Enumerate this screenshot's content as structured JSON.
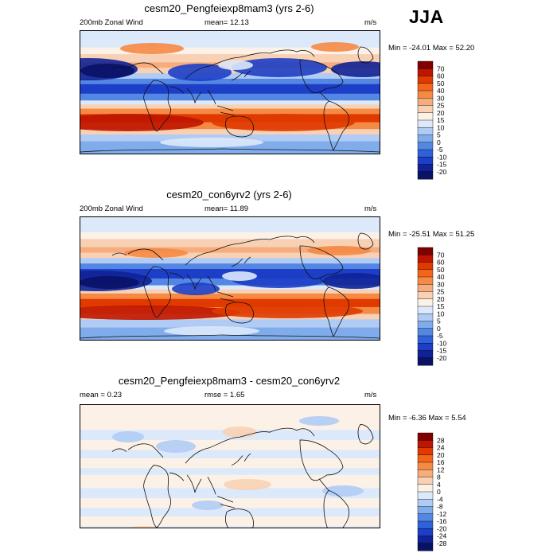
{
  "season": "JJA",
  "panels": [
    {
      "title": "cesm20_Pengfeiexp8mam3 (yrs 2-6)",
      "left_label": "200mb Zonal Wind",
      "mid_label": "mean=  12.13",
      "units": "m/s",
      "minmax": "Min = -24.01 Max =  52.20",
      "legend_colors": [
        "#800000",
        "#bf1500",
        "#e03a00",
        "#f2651b",
        "#f58a45",
        "#f6ac7d",
        "#f8d1b5",
        "#fbf1e6",
        "#dbe9fb",
        "#b0ccf5",
        "#80acec",
        "#5487e3",
        "#2f62d9",
        "#1d3ec6",
        "#102296",
        "#0a1266"
      ],
      "legend_labels": [
        "70",
        "60",
        "50",
        "40",
        "30",
        "25",
        "20",
        "15",
        "10",
        "5",
        "0",
        "-5",
        "-10",
        "-15",
        "-20"
      ],
      "map_bands": [
        {
          "lat": 90,
          "color": "#dbe9fb"
        },
        {
          "lat": 66,
          "color": "#fbf1e6"
        },
        {
          "lat": 56,
          "color": "#f8d1b5"
        },
        {
          "lat": 44,
          "color": "#f6ac7d"
        },
        {
          "lat": 36,
          "color": "#f8d1b5"
        },
        {
          "lat": 28,
          "color": "#b0ccf5"
        },
        {
          "lat": 20,
          "color": "#5487e3"
        },
        {
          "lat": 12,
          "color": "#1d3ec6"
        },
        {
          "lat": -2,
          "color": "#5487e3"
        },
        {
          "lat": -12,
          "color": "#dbe9fb"
        },
        {
          "lat": -18,
          "color": "#f8d1b5"
        },
        {
          "lat": -24,
          "color": "#f58a45"
        },
        {
          "lat": -32,
          "color": "#e03a00"
        },
        {
          "lat": -44,
          "color": "#f58a45"
        },
        {
          "lat": -54,
          "color": "#f8d1b5"
        },
        {
          "lat": -62,
          "color": "#b0ccf5"
        },
        {
          "lat": -72,
          "color": "#80acec"
        }
      ]
    },
    {
      "title": "cesm20_con6yrv2 (yrs 2-6)",
      "left_label": "200mb Zonal Wind",
      "mid_label": "mean=  11.89",
      "units": "m/s",
      "minmax": "Min = -25.51 Max =  51.25",
      "legend_colors": [
        "#800000",
        "#bf1500",
        "#e03a00",
        "#f2651b",
        "#f58a45",
        "#f6ac7d",
        "#f8d1b5",
        "#fbf1e6",
        "#dbe9fb",
        "#b0ccf5",
        "#80acec",
        "#5487e3",
        "#2f62d9",
        "#1d3ec6",
        "#102296",
        "#0a1266"
      ],
      "legend_labels": [
        "70",
        "60",
        "50",
        "40",
        "30",
        "25",
        "20",
        "15",
        "10",
        "5",
        "0",
        "-5",
        "-10",
        "-15",
        "-20"
      ],
      "map_bands": [
        {
          "lat": 90,
          "color": "#dbe9fb"
        },
        {
          "lat": 68,
          "color": "#fbf1e6"
        },
        {
          "lat": 58,
          "color": "#f8d1b5"
        },
        {
          "lat": 46,
          "color": "#f6ac7d"
        },
        {
          "lat": 38,
          "color": "#f8d1b5"
        },
        {
          "lat": 30,
          "color": "#b0ccf5"
        },
        {
          "lat": 22,
          "color": "#5487e3"
        },
        {
          "lat": 14,
          "color": "#1d3ec6"
        },
        {
          "lat": 0,
          "color": "#5487e3"
        },
        {
          "lat": -10,
          "color": "#dbe9fb"
        },
        {
          "lat": -16,
          "color": "#f8d1b5"
        },
        {
          "lat": -22,
          "color": "#f58a45"
        },
        {
          "lat": -30,
          "color": "#e03a00"
        },
        {
          "lat": -42,
          "color": "#f58a45"
        },
        {
          "lat": -52,
          "color": "#f8d1b5"
        },
        {
          "lat": -60,
          "color": "#b0ccf5"
        },
        {
          "lat": -72,
          "color": "#80acec"
        }
      ]
    },
    {
      "title": "cesm20_Pengfeiexp8mam3 - cesm20_con6yrv2",
      "left_label": "mean =   0.23",
      "mid_label": "rmse =   1.65",
      "units": "m/s",
      "minmax": "Min = -6.36 Max =   5.54",
      "legend_colors": [
        "#800000",
        "#bf1500",
        "#e03a00",
        "#f2651b",
        "#f58a45",
        "#f6ac7d",
        "#f8d1b5",
        "#fbf1e6",
        "#dbe9fb",
        "#b0ccf5",
        "#80acec",
        "#5487e3",
        "#2f62d9",
        "#1d3ec6",
        "#102296",
        "#0a1266"
      ],
      "legend_labels": [
        "28",
        "24",
        "20",
        "16",
        "12",
        "8",
        "4",
        "0",
        "-4",
        "-8",
        "-12",
        "-16",
        "-20",
        "-24",
        "-28"
      ],
      "map_bands": [
        {
          "lat": 90,
          "color": "#fbf1e6"
        },
        {
          "lat": 60,
          "color": "#dbe9fb"
        },
        {
          "lat": 48,
          "color": "#fbf1e6"
        },
        {
          "lat": 36,
          "color": "#dbe9fb"
        },
        {
          "lat": 26,
          "color": "#fbf1e6"
        },
        {
          "lat": 14,
          "color": "#dbe9fb"
        },
        {
          "lat": 6,
          "color": "#fbf1e6"
        },
        {
          "lat": -10,
          "color": "#dbe9fb"
        },
        {
          "lat": -22,
          "color": "#fbf1e6"
        },
        {
          "lat": -34,
          "color": "#dbe9fb"
        },
        {
          "lat": -44,
          "color": "#fbf1e6"
        },
        {
          "lat": -56,
          "color": "#dbe9fb"
        },
        {
          "lat": -66,
          "color": "#fbf1e6"
        },
        {
          "lat": -76,
          "color": "#dbe9fb"
        }
      ]
    }
  ]
}
